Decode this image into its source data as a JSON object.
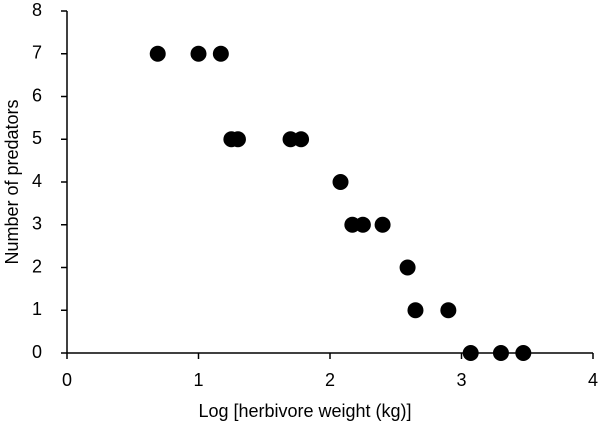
{
  "chart_data": {
    "type": "scatter",
    "x_label": "Log [herbivore weight (kg)]",
    "y_label": "Number of predators",
    "x": [
      0.69,
      1.0,
      1.17,
      1.25,
      1.3,
      1.7,
      1.78,
      2.08,
      2.17,
      2.25,
      2.4,
      2.59,
      2.65,
      2.9,
      3.07,
      3.3,
      3.47
    ],
    "values": [
      7,
      7,
      7,
      5,
      5,
      5,
      5,
      4,
      3,
      3,
      3,
      2,
      1,
      1,
      0,
      0,
      0
    ],
    "color": "#000000",
    "xlim": [
      0,
      4
    ],
    "xticks": [
      0,
      1,
      2,
      3,
      4
    ],
    "ylim": [
      0,
      8
    ],
    "yticks": [
      0,
      1,
      2,
      3,
      4,
      5,
      6,
      7,
      8
    ],
    "grid": false
  }
}
